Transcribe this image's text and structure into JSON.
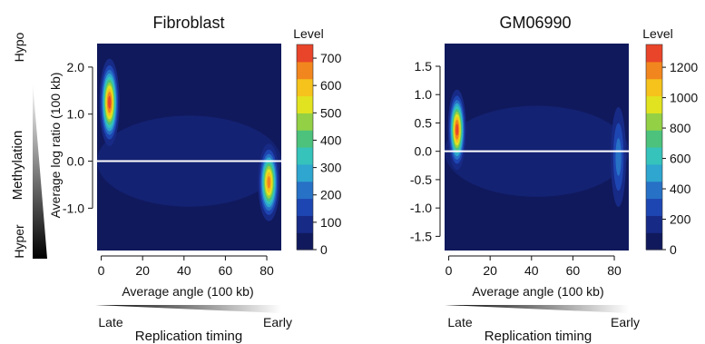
{
  "chart_data": [
    {
      "type": "heatmap",
      "title": "Fibroblast",
      "xlabel": "Average angle  (100 kb)",
      "ylabel": "Average log ratio (100 kb)",
      "xlim": [
        -2,
        87
      ],
      "ylim": [
        -1.9,
        2.5
      ],
      "xticks": [
        0,
        20,
        40,
        60,
        80
      ],
      "xtick_labels": [
        "0",
        "20",
        "40",
        "60",
        "80"
      ],
      "yticks": [
        2.0,
        1.0,
        0.0,
        -1.0
      ],
      "ytick_labels": [
        "2.0",
        "1.0",
        "0.0",
        "-1.0"
      ],
      "reference_line_y": 0.0,
      "colorbar": {
        "title": "Level",
        "range": [
          0,
          750
        ],
        "ticks": [
          0,
          100,
          200,
          300,
          400,
          500,
          600,
          700
        ],
        "tick_labels": [
          "0",
          "100",
          "200",
          "300",
          "400",
          "500",
          "600",
          "700"
        ]
      },
      "density_peaks": [
        {
          "x": 4,
          "y": 1.25,
          "level": 720
        },
        {
          "x": 81,
          "y": -0.45,
          "level": 700
        }
      ]
    },
    {
      "type": "heatmap",
      "title": "GM06990",
      "xlabel": "Average angle (100 kb)",
      "ylabel": "",
      "xlim": [
        -2,
        87
      ],
      "ylim": [
        -1.75,
        1.9
      ],
      "xticks": [
        0,
        20,
        40,
        60,
        80
      ],
      "xtick_labels": [
        "0",
        "20",
        "40",
        "60",
        "80"
      ],
      "yticks": [
        1.5,
        1.0,
        0.5,
        0.0,
        -0.5,
        -1.0,
        -1.5
      ],
      "ytick_labels": [
        "1.5",
        "1.0",
        "0.5",
        "0.0",
        "-0.5",
        "-1.0",
        "-1.5"
      ],
      "reference_line_y": 0.0,
      "colorbar": {
        "title": "Level",
        "range": [
          0,
          1350
        ],
        "ticks": [
          0,
          200,
          400,
          600,
          800,
          1000,
          1200
        ],
        "tick_labels": [
          "0",
          "200",
          "400",
          "600",
          "800",
          "1000",
          "1200"
        ]
      },
      "density_peaks": [
        {
          "x": 4,
          "y": 0.38,
          "level": 1300
        },
        {
          "x": 82,
          "y": -0.1,
          "level": 400
        }
      ]
    }
  ],
  "methylation_scale": {
    "label": "Methylation",
    "top": "Hypo",
    "bottom": "Hyper"
  },
  "replication_scales": [
    {
      "label": "Replication timing",
      "left": "Late",
      "right": "Early"
    },
    {
      "label": "Replication timing",
      "left": "Late",
      "right": "Early"
    }
  ],
  "colors": {
    "background": "#10195c",
    "reference_line": "#ffffff",
    "palette": [
      "#10195c",
      "#172a86",
      "#1e46b2",
      "#2771c6",
      "#2ea6cf",
      "#35c3bb",
      "#4cc27c",
      "#93d046",
      "#e2e320",
      "#f5c31c",
      "#f2861e",
      "#e8452a"
    ]
  }
}
